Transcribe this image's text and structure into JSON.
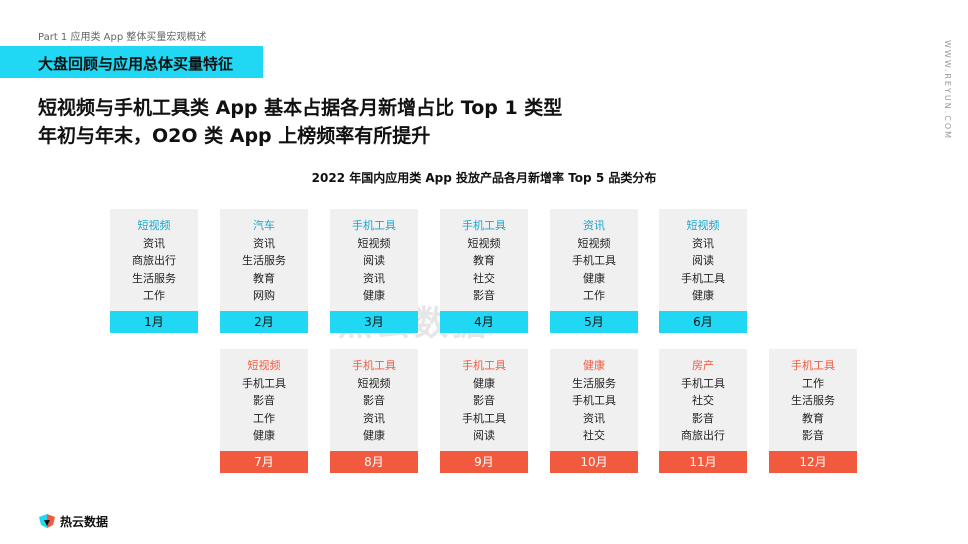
{
  "header": {
    "part": "Part 1 应用类 App 整体买量宏观概述",
    "banner": "大盘回顾与应用总体买量特征",
    "headline1": "短视频与手机工具类 App 基本占据各月新增占比 Top 1 类型",
    "headline2": "年初与年末，O2O 类 App 上榜频率有所提升",
    "site": "WWW.REYUN.COM"
  },
  "chart_title": "2022 年国内应用类 App 投放产品各月新增率 Top 5 品类分布",
  "colors": {
    "row1": "#20d7f4",
    "row2": "#f25a40"
  },
  "months": [
    {
      "month": "1月",
      "cats": [
        "短视频",
        "资讯",
        "商旅出行",
        "生活服务",
        "工作"
      ]
    },
    {
      "month": "2月",
      "cats": [
        "汽车",
        "资讯",
        "生活服务",
        "教育",
        "网购"
      ]
    },
    {
      "month": "3月",
      "cats": [
        "手机工具",
        "短视频",
        "阅读",
        "资讯",
        "健康"
      ]
    },
    {
      "month": "4月",
      "cats": [
        "手机工具",
        "短视频",
        "教育",
        "社交",
        "影音"
      ]
    },
    {
      "month": "5月",
      "cats": [
        "资讯",
        "短视频",
        "手机工具",
        "健康",
        "工作"
      ]
    },
    {
      "month": "6月",
      "cats": [
        "短视频",
        "资讯",
        "阅读",
        "手机工具",
        "健康"
      ]
    },
    {
      "month": "7月",
      "cats": [
        "短视频",
        "手机工具",
        "影音",
        "工作",
        "健康"
      ]
    },
    {
      "month": "8月",
      "cats": [
        "手机工具",
        "短视频",
        "影音",
        "资讯",
        "健康"
      ]
    },
    {
      "month": "9月",
      "cats": [
        "手机工具",
        "健康",
        "影音",
        "手机工具",
        "阅读"
      ]
    },
    {
      "month": "10月",
      "cats": [
        "健康",
        "生活服务",
        "手机工具",
        "资讯",
        "社交"
      ]
    },
    {
      "month": "11月",
      "cats": [
        "房产",
        "手机工具",
        "社交",
        "影音",
        "商旅出行"
      ]
    },
    {
      "month": "12月",
      "cats": [
        "手机工具",
        "工作",
        "生活服务",
        "教育",
        "影音"
      ]
    }
  ],
  "watermark": "热云数据",
  "footer": {
    "logo_text": "热云数据",
    "logo_icon": "reyun-logo-icon"
  }
}
